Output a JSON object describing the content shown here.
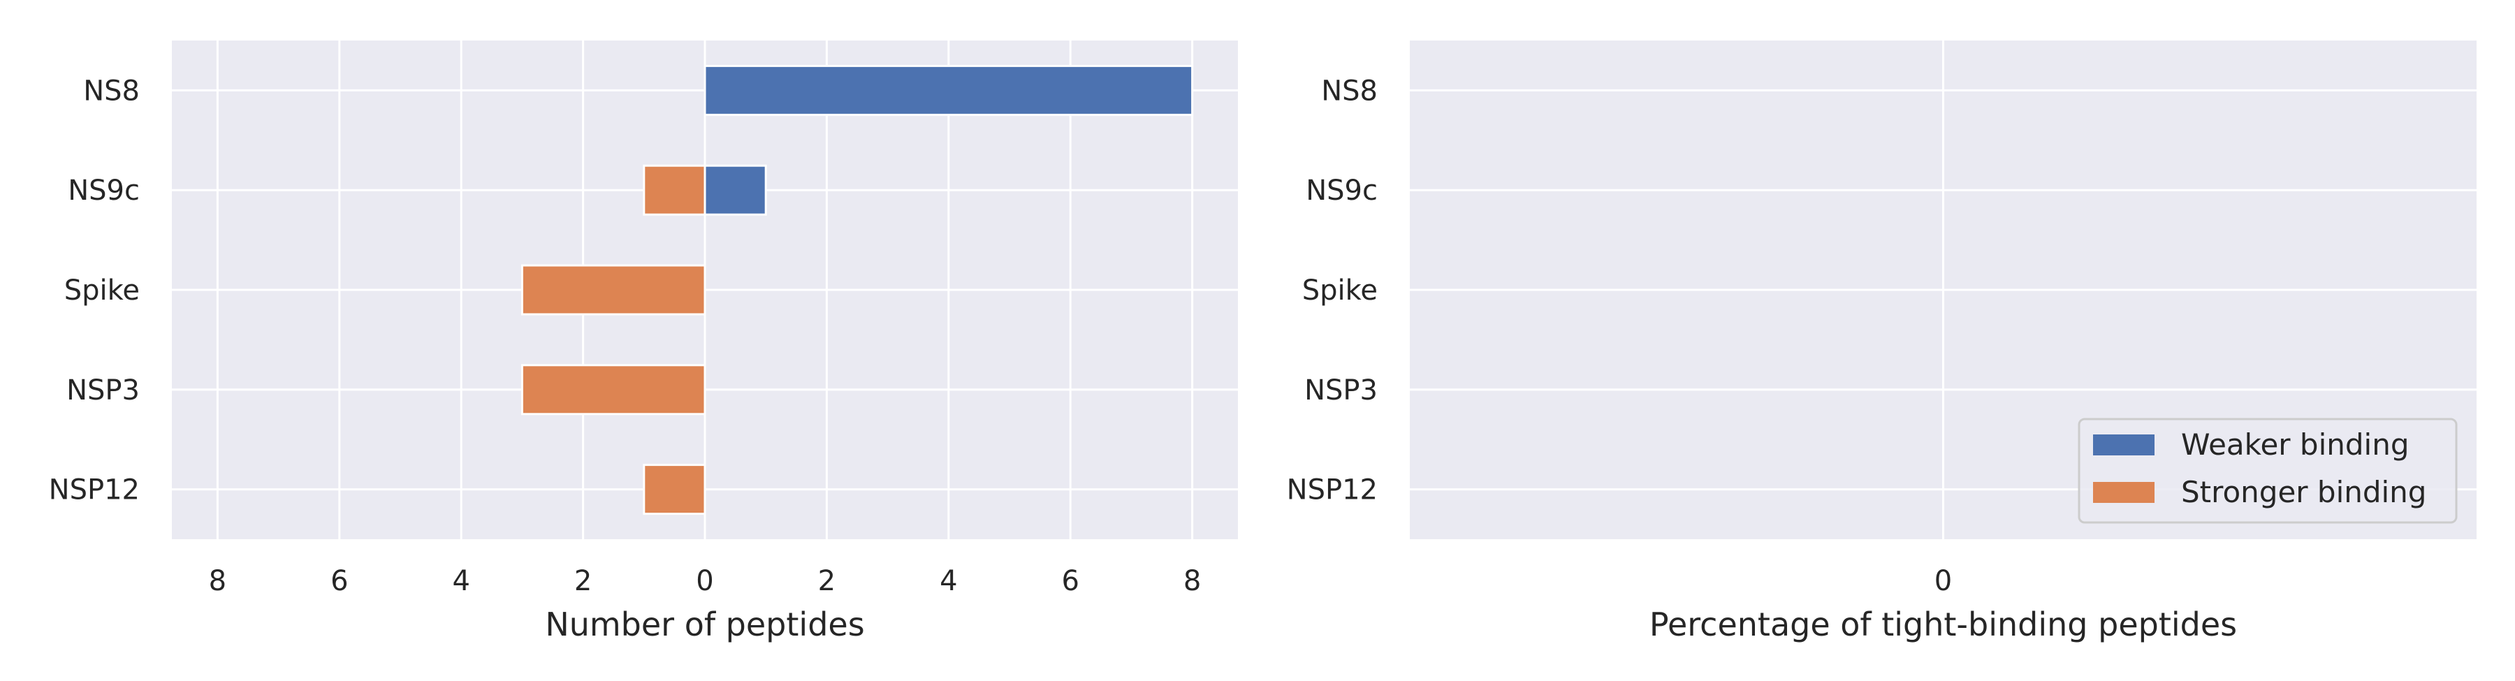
{
  "colors": {
    "background": "#eaeaf2",
    "grid": "#ffffff",
    "weaker": "#4c72b0",
    "stronger": "#dd8452"
  },
  "chart_data": [
    {
      "type": "bar",
      "orientation": "horizontal",
      "categories": [
        "NS8",
        "NS9c",
        "Spike",
        "NSP3",
        "NSP12"
      ],
      "series": [
        {
          "name": "Weaker binding",
          "values": [
            8,
            1,
            0,
            0,
            0
          ]
        },
        {
          "name": "Stronger binding",
          "values": [
            0,
            -1,
            -3,
            -3,
            -1
          ]
        }
      ],
      "xlabel": "Number of peptides",
      "ylabel": "",
      "xticks": [
        -8,
        -6,
        -4,
        -2,
        0,
        2,
        4,
        6,
        8
      ],
      "xtick_labels": [
        "8",
        "6",
        "4",
        "2",
        "0",
        "2",
        "4",
        "6",
        "8"
      ],
      "xlim": [
        -8.75,
        8.75
      ],
      "grid": true
    },
    {
      "type": "bar",
      "orientation": "horizontal",
      "categories": [
        "NS8",
        "NS9c",
        "Spike",
        "NSP3",
        "NSP12"
      ],
      "series": [
        {
          "name": "Weaker binding",
          "values": [
            0,
            0,
            0,
            0,
            0
          ]
        },
        {
          "name": "Stronger binding",
          "values": [
            0,
            0,
            0,
            0,
            0
          ]
        }
      ],
      "xlabel": "Percentage of tight-binding peptides",
      "ylabel": "",
      "xticks": [
        0
      ],
      "xtick_labels": [
        "0"
      ],
      "grid": true,
      "legend": {
        "placement": "lower-right",
        "entries": [
          "Weaker binding",
          "Stronger binding"
        ]
      }
    }
  ]
}
